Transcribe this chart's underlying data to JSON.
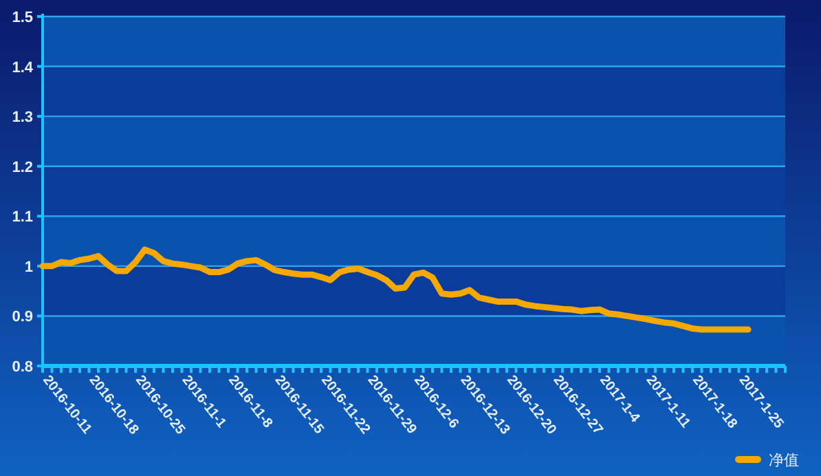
{
  "chart_data": {
    "type": "line",
    "categories": [
      "2016-10-11",
      null,
      null,
      null,
      null,
      "2016-10-18",
      null,
      null,
      null,
      null,
      "2016-10-25",
      null,
      null,
      null,
      null,
      "2016-11-1",
      null,
      null,
      null,
      null,
      "2016-11-8",
      null,
      null,
      null,
      null,
      "2016-11-15",
      null,
      null,
      null,
      null,
      "2016-11-22",
      null,
      null,
      null,
      null,
      "2016-11-29",
      null,
      null,
      null,
      null,
      "2016-12-6",
      null,
      null,
      null,
      null,
      "2016-12-13",
      null,
      null,
      null,
      null,
      "2016-12-20",
      null,
      null,
      null,
      null,
      "2016-12-27",
      null,
      null,
      null,
      null,
      "2017-1-4",
      null,
      null,
      null,
      null,
      "2017-1-11",
      null,
      null,
      null,
      null,
      "2017-1-18",
      null,
      null,
      null,
      null,
      "2017-1-25",
      null,
      null,
      null,
      null,
      null
    ],
    "series": [
      {
        "name": "净值",
        "color": "#f5a800",
        "values": [
          1.0,
          1.0,
          1.008,
          1.006,
          1.012,
          1.015,
          1.02,
          1.003,
          0.99,
          0.99,
          1.008,
          1.033,
          1.026,
          1.01,
          1.005,
          1.003,
          1.0,
          0.997,
          0.988,
          0.988,
          0.993,
          1.005,
          1.01,
          1.012,
          1.003,
          0.992,
          0.988,
          0.985,
          0.983,
          0.983,
          0.978,
          0.972,
          0.988,
          0.993,
          0.995,
          0.988,
          0.982,
          0.972,
          0.955,
          0.957,
          0.983,
          0.987,
          0.977,
          0.945,
          0.943,
          0.945,
          0.952,
          0.937,
          0.933,
          0.929,
          0.929,
          0.929,
          0.923,
          0.92,
          0.918,
          0.916,
          0.914,
          0.913,
          0.91,
          0.912,
          0.913,
          0.905,
          0.903,
          0.9,
          0.897,
          0.894,
          0.89,
          0.887,
          0.885,
          0.88,
          0.875,
          0.873,
          0.873,
          0.873,
          0.873,
          0.873,
          0.873,
          null,
          null,
          null,
          null
        ]
      }
    ],
    "ylim": [
      0.8,
      1.5
    ],
    "yticks": [
      0.8,
      0.9,
      1,
      1.1,
      1.2,
      1.3,
      1.4,
      1.5
    ],
    "bands": [
      {
        "axis": "y",
        "from": 0.8,
        "to": 0.9,
        "color": "#0b52ae"
      },
      {
        "axis": "y",
        "from": 0.9,
        "to": 1,
        "color": "#0a3c9c"
      },
      {
        "axis": "y",
        "from": 1,
        "to": 1.1,
        "color": "#0b52ae"
      },
      {
        "axis": "y",
        "from": 1.1,
        "to": 1.2,
        "color": "#0a3c9c"
      },
      {
        "axis": "y",
        "from": 1.2,
        "to": 1.3,
        "color": "#0b52ae"
      },
      {
        "axis": "y",
        "from": 1.3,
        "to": 1.4,
        "color": "#0a3c9c"
      },
      {
        "axis": "y",
        "from": 1.4,
        "to": 1.5,
        "color": "#0b52ae"
      }
    ],
    "grid": "y",
    "legend": "bottom right",
    "marker": "none"
  }
}
